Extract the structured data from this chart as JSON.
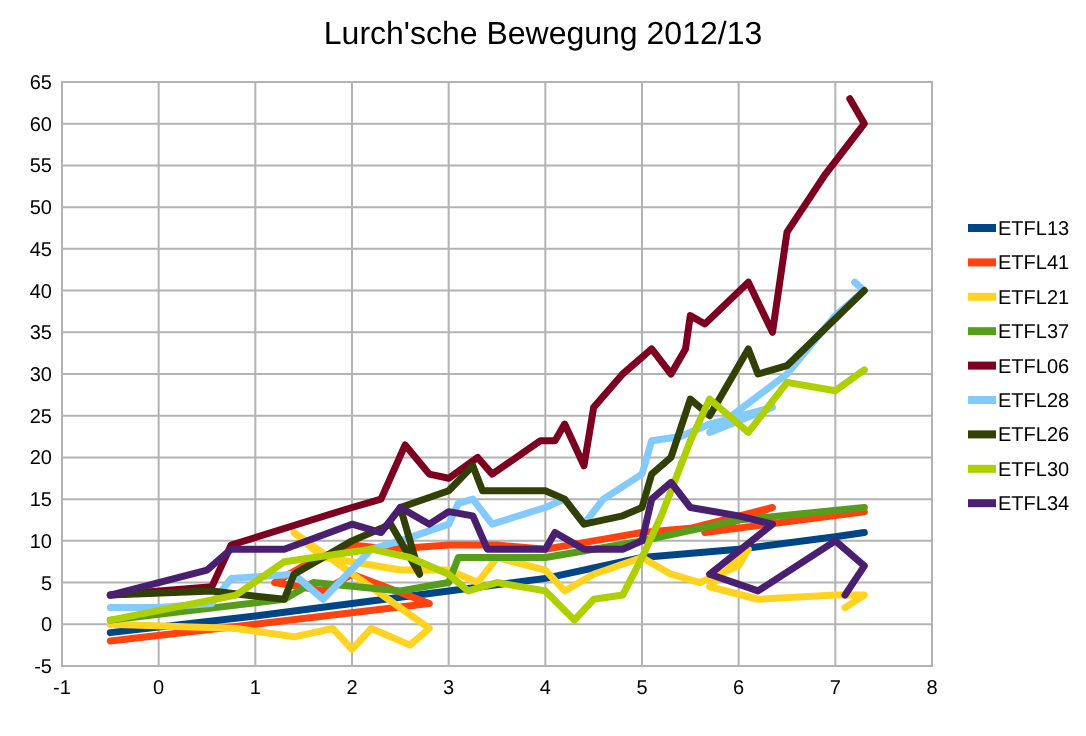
{
  "chart_data": {
    "type": "line",
    "title": "Lurch'sche Bewegung 2012/13",
    "xlim": [
      -1,
      8
    ],
    "xticks": [
      -1,
      0,
      1,
      2,
      3,
      4,
      5,
      6,
      7,
      8
    ],
    "ylim": [
      -5,
      65
    ],
    "yticks": [
      -5,
      0,
      5,
      10,
      15,
      20,
      25,
      30,
      35,
      40,
      45,
      50,
      55,
      60,
      65
    ],
    "grid": true,
    "legend": "right",
    "marker": "none",
    "series": [
      {
        "name": "ETFL13",
        "color": "#004586",
        "x": [
          -0.5,
          1,
          2,
          3,
          4,
          5,
          6,
          7,
          7.3
        ],
        "values": [
          -1,
          1,
          2.5,
          4,
          5.5,
          8,
          9,
          10.5,
          11
        ]
      },
      {
        "name": "ETFL41",
        "color": "#ff420e",
        "x": [
          -0.5,
          1,
          2.8,
          2,
          1.7,
          1.2,
          1.5,
          2,
          2.4,
          3,
          3.5,
          4,
          4.5,
          5,
          5.5,
          6.35,
          5.65,
          7.3
        ],
        "values": [
          -2,
          0,
          2.5,
          6,
          4,
          5,
          7,
          9.5,
          9,
          9.5,
          9.5,
          9,
          10,
          11,
          11.5,
          14,
          11,
          13.5
        ]
      },
      {
        "name": "ETFL21",
        "color": "#ffd320",
        "x": [
          -0.5,
          0.8,
          1.4,
          1.8,
          2,
          2.2,
          2.6,
          2.8,
          1.4,
          1.7,
          2,
          2.5,
          3,
          3.3,
          3.5,
          4,
          4.2,
          4.5,
          5,
          5.3,
          5.6,
          6,
          6.1,
          5.7,
          6.2,
          7,
          7.3,
          7.1
        ],
        "values": [
          0,
          -0.5,
          -1.5,
          -0.5,
          -3,
          -0.5,
          -2.5,
          -0.5,
          11,
          8,
          7.5,
          6.5,
          6.5,
          5,
          8,
          6.5,
          4,
          6,
          8,
          6,
          5,
          7,
          9,
          4.5,
          3,
          3.5,
          3.5,
          2
        ]
      },
      {
        "name": "ETFL37",
        "color": "#579d1c",
        "x": [
          -0.5,
          1.3,
          1.6,
          2.5,
          3,
          3.1,
          4,
          4.5,
          5,
          6,
          7.3
        ],
        "values": [
          0.5,
          3,
          5,
          4,
          5,
          8,
          8,
          9,
          10,
          12.5,
          14
        ]
      },
      {
        "name": "ETFL06",
        "color": "#7e0021",
        "x": [
          -0.5,
          0.55,
          0.75,
          2,
          2.3,
          2.55,
          2.8,
          3,
          3.3,
          3.45,
          3.95,
          4.1,
          4.2,
          4.4,
          4.5,
          4.8,
          5.1,
          5.3,
          5.45,
          5.5,
          5.65,
          6.1,
          6.35,
          6.5,
          6.9,
          7.1,
          7.3,
          7.15
        ],
        "values": [
          3.5,
          4.5,
          9.5,
          14,
          15,
          21.5,
          18,
          17.5,
          20,
          18,
          22,
          22,
          24,
          19,
          26,
          30,
          33,
          30,
          33,
          37,
          36,
          41,
          35,
          47,
          54,
          57,
          60,
          63
        ]
      },
      {
        "name": "ETFL28",
        "color": "#83caff",
        "x": [
          -0.5,
          0,
          0.55,
          0.75,
          1.4,
          1.7,
          2.2,
          2.5,
          3,
          3.1,
          3.25,
          3.45,
          4,
          4.2,
          4.4,
          4.6,
          5,
          5.1,
          5.4,
          5.7,
          6.35,
          5.7,
          6.5,
          7,
          7.3,
          7.2
        ],
        "values": [
          2,
          2,
          2.5,
          5.5,
          6,
          3,
          9,
          10,
          12,
          14.5,
          15,
          12,
          14,
          15,
          12,
          15,
          18,
          22,
          22.5,
          24,
          26,
          23,
          30,
          37,
          40,
          41
        ]
      },
      {
        "name": "ETFL26",
        "color": "#314004",
        "x": [
          -0.5,
          0.55,
          0.9,
          1.3,
          1.4,
          2,
          2.4,
          2.7,
          2.5,
          3,
          3.25,
          3.35,
          4,
          4.2,
          4.4,
          4.8,
          5,
          5.1,
          5.3,
          5.5,
          5.7,
          6.1,
          6.2,
          6.5,
          7.3
        ],
        "values": [
          3.5,
          4,
          3.5,
          3,
          6,
          10,
          12,
          6,
          14,
          16,
          19,
          16,
          16,
          15,
          12,
          13,
          14,
          18,
          20,
          27,
          25,
          33,
          30,
          31,
          40
        ]
      },
      {
        "name": "ETFL30",
        "color": "#aecf00",
        "x": [
          -0.5,
          0.8,
          1.3,
          2.2,
          2.6,
          3,
          3.2,
          3.5,
          4,
          4.3,
          4.5,
          4.8,
          5,
          5.2,
          5.5,
          5.7,
          6.1,
          6.5,
          7,
          7.3
        ],
        "values": [
          0.5,
          3.5,
          7.5,
          9,
          8,
          6,
          4,
          5,
          4,
          0.5,
          3,
          3.5,
          8,
          13,
          22,
          27,
          23,
          29,
          28,
          30.5
        ]
      },
      {
        "name": "ETFL34",
        "color": "#4b1f6f",
        "x": [
          -0.5,
          0.5,
          0.75,
          1.3,
          2,
          2.3,
          2.5,
          2.8,
          3,
          3.25,
          3.4,
          4,
          4.1,
          4.4,
          4.8,
          5,
          5.1,
          5.3,
          5.5,
          6,
          6.35,
          5.7,
          6.2,
          7,
          7.3,
          7.1
        ],
        "values": [
          3.5,
          6.5,
          9,
          9,
          12,
          11,
          14,
          12,
          13.5,
          13,
          9,
          9,
          11,
          9,
          9,
          10,
          15,
          17,
          14,
          13,
          12,
          6,
          4,
          10,
          7,
          3.5
        ]
      }
    ]
  }
}
